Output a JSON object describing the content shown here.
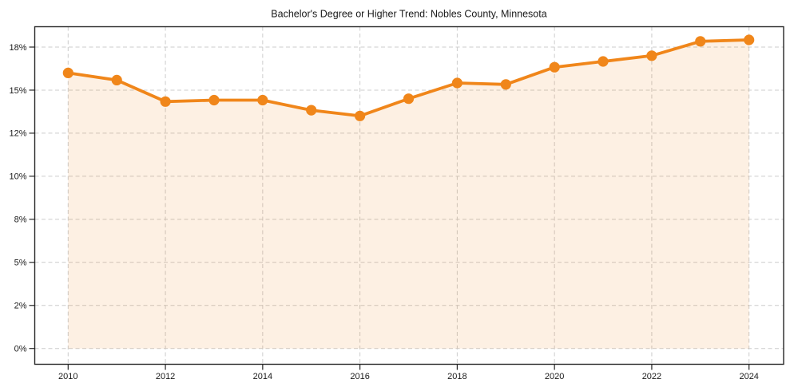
{
  "page": {
    "background": "#ffffff"
  },
  "chart_data": {
    "type": "line",
    "title": "Bachelor's Degree or Higher Trend: Nobles County, Minnesota",
    "x": [
      2010,
      2011,
      2012,
      2013,
      2014,
      2015,
      2016,
      2017,
      2018,
      2019,
      2020,
      2021,
      2022,
      2023,
      2024
    ],
    "series": [
      {
        "name": "Bachelor's degree or higher (%)",
        "values": [
          16.2,
          15.7,
          14.2,
          14.3,
          14.3,
          13.6,
          13.2,
          14.4,
          15.5,
          15.4,
          16.6,
          17.0,
          17.4,
          18.4,
          18.5
        ],
        "color": "#f0861a",
        "marker": "circle",
        "fill_below": true,
        "fill_opacity": 0.12
      }
    ],
    "xlabel": "",
    "ylabel": "",
    "x_tick_values": [
      2010,
      2012,
      2014,
      2016,
      2018,
      2020,
      2022,
      2024
    ],
    "x_tick_labels": [
      "2010",
      "2012",
      "2014",
      "2016",
      "2018",
      "2020",
      "2022",
      "2024"
    ],
    "y_tick_values": [
      0,
      2,
      5,
      8,
      10,
      12,
      15,
      18
    ],
    "y_tick_labels": [
      "0%",
      "2%",
      "5%",
      "8%",
      "10%",
      "12%",
      "15%",
      "18%"
    ],
    "y_tick_spacing": "uniform-pixel",
    "xlim": [
      2009.3,
      2024.7
    ],
    "ylim": [
      -0.7,
      19.4
    ],
    "grid": true,
    "legend": "none",
    "grid_color": "#cccccc",
    "axis_color": "#262626",
    "text_color": "#1a1a1a",
    "background": "#ffffff"
  }
}
